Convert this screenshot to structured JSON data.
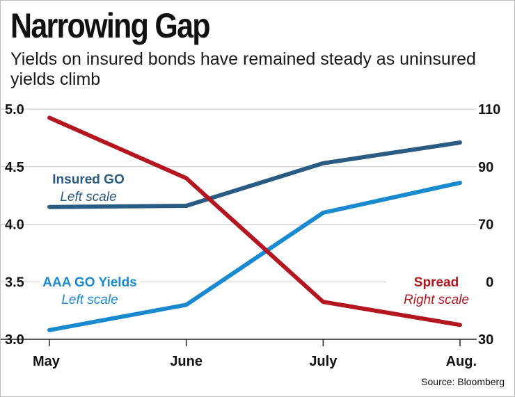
{
  "chart_data": {
    "type": "line",
    "title": "Narrowing Gap",
    "subtitle": "Yields on insured bonds have remained steady as uninsured yields climb",
    "categories": [
      "May",
      "June",
      "July",
      "Aug."
    ],
    "y_left": {
      "ylim": [
        3.0,
        5.0
      ],
      "ticks": [
        "5.0",
        "4.5",
        "4.0",
        "3.5",
        "3.0"
      ]
    },
    "y_right": {
      "ylim": [
        30,
        110
      ],
      "ticks": [
        "110",
        "90",
        "70",
        "50",
        "30"
      ]
    },
    "grid": true,
    "series": [
      {
        "name": "Insured GO",
        "scale_label": "Left scale",
        "axis": "left",
        "color": "#2a5b82",
        "values": [
          4.15,
          4.16,
          4.53,
          4.71
        ]
      },
      {
        "name": "AAA GO Yields",
        "scale_label": "Left scale",
        "axis": "left",
        "color": "#1a8ad0",
        "values": [
          3.08,
          3.3,
          4.1,
          4.36
        ]
      },
      {
        "name": "Spread",
        "scale_label": "Right scale",
        "axis": "right",
        "color": "#b4151f",
        "values": [
          107,
          86,
          43,
          35
        ]
      }
    ],
    "source": "Source: Bloomberg"
  }
}
